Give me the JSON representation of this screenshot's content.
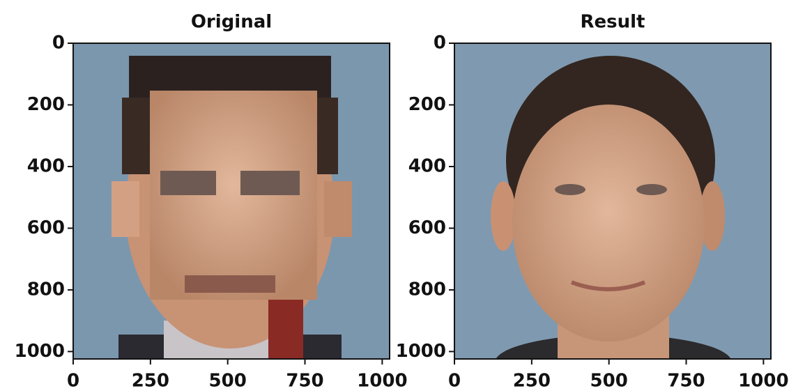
{
  "chart_data": [
    {
      "type": "image",
      "title": "Original",
      "xlim": [
        0,
        1024
      ],
      "ylim": [
        1024,
        0
      ],
      "xticks": [
        0,
        250,
        500,
        750,
        1000
      ],
      "yticks": [
        0,
        200,
        400,
        600,
        800,
        1000
      ]
    },
    {
      "type": "image",
      "title": "Result",
      "xlim": [
        0,
        1024
      ],
      "ylim": [
        1024,
        0
      ],
      "xticks": [
        0,
        250,
        500,
        750,
        1000
      ],
      "yticks": [
        0,
        200,
        400,
        600,
        800,
        1000
      ]
    }
  ]
}
